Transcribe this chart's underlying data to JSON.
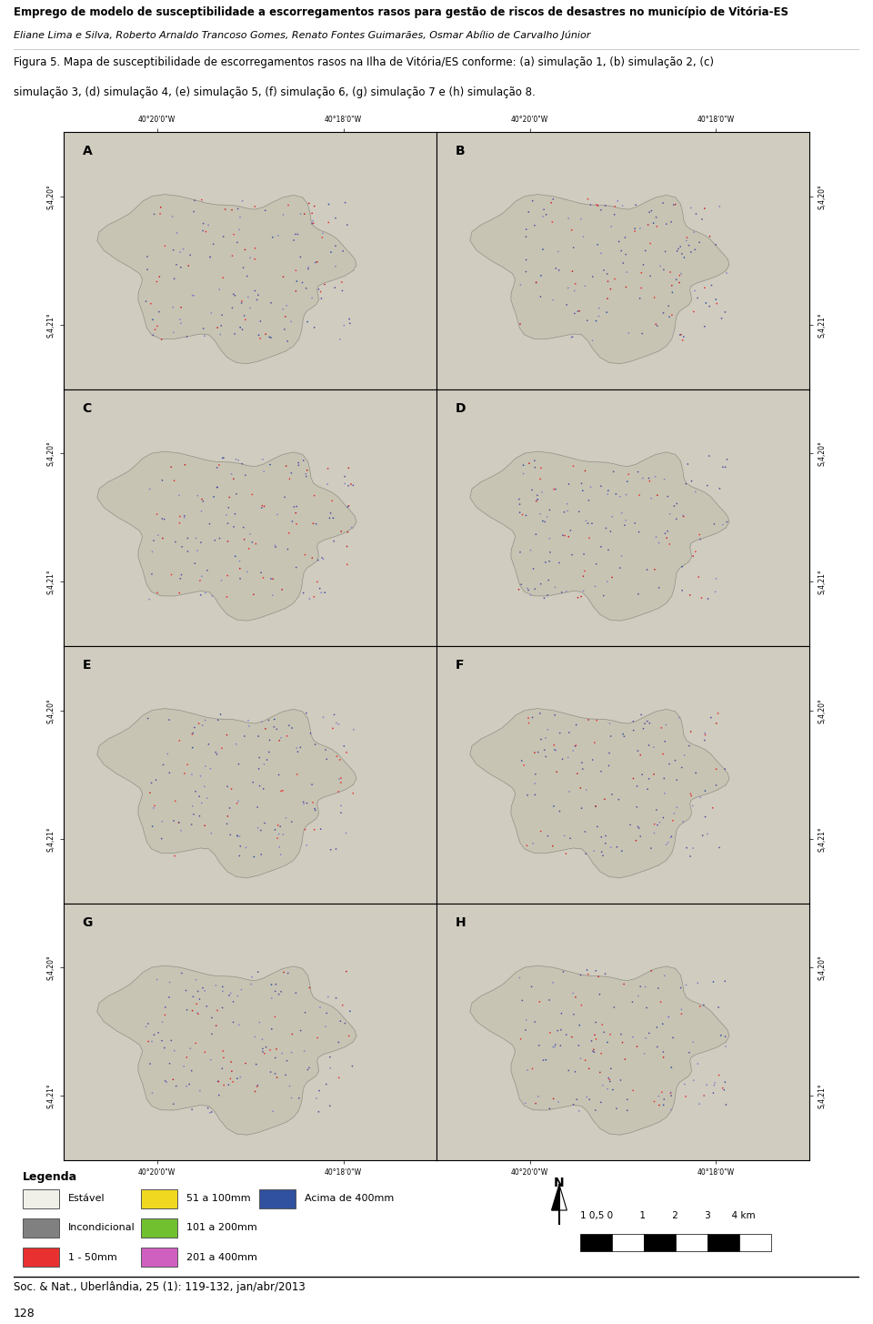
{
  "title_line1": "Emprego de modelo de susceptibilidade a escorregamentos rasos para gestão de riscos de desastres no município de Vitória-ES",
  "title_line2": "Eliane Lima e Silva, Roberto Arnaldo Trancoso Gomes, Renato Fontes Guimarães, Osmar Abílio de Carvalho Júnior",
  "figure_caption_line1": "Figura 5. Mapa de susceptibilidade de escorregamentos rasos na Ilha de Vitória/ES conforme: (a) simulação 1, (b) simulação 2, (c)",
  "figure_caption_line2": "simulação 3, (d) simulação 4, (e) simulação 5, (f) simulação 6, (g) simulação 7 e (h) simulação 8.",
  "footer_line1": "Soc. & Nat., Uberlândia, 25 (1): 119-132, jan/abr/2013",
  "footer_line2": "128",
  "panel_labels": [
    "A",
    "B",
    "C",
    "D",
    "E",
    "F",
    "G",
    "H"
  ],
  "x_ticks": [
    "40°20'0\"W",
    "40°18'0\"W"
  ],
  "legend_title": "Legenda",
  "legend_items": [
    {
      "color": "#f0f0e8",
      "label": "Estável"
    },
    {
      "color": "#808080",
      "label": "Incondicional"
    },
    {
      "color": "#e83030",
      "label": "1 - 50mm"
    },
    {
      "color": "#f0d820",
      "label": "51 a 100mm"
    },
    {
      "color": "#70c030",
      "label": "101 a 200mm"
    },
    {
      "color": "#d060c0",
      "label": "201 a 400mm"
    },
    {
      "color": "#3050a0",
      "label": "Acima de 400mm"
    }
  ],
  "map_bg": "#d0ccc0",
  "border_color": "#000000"
}
